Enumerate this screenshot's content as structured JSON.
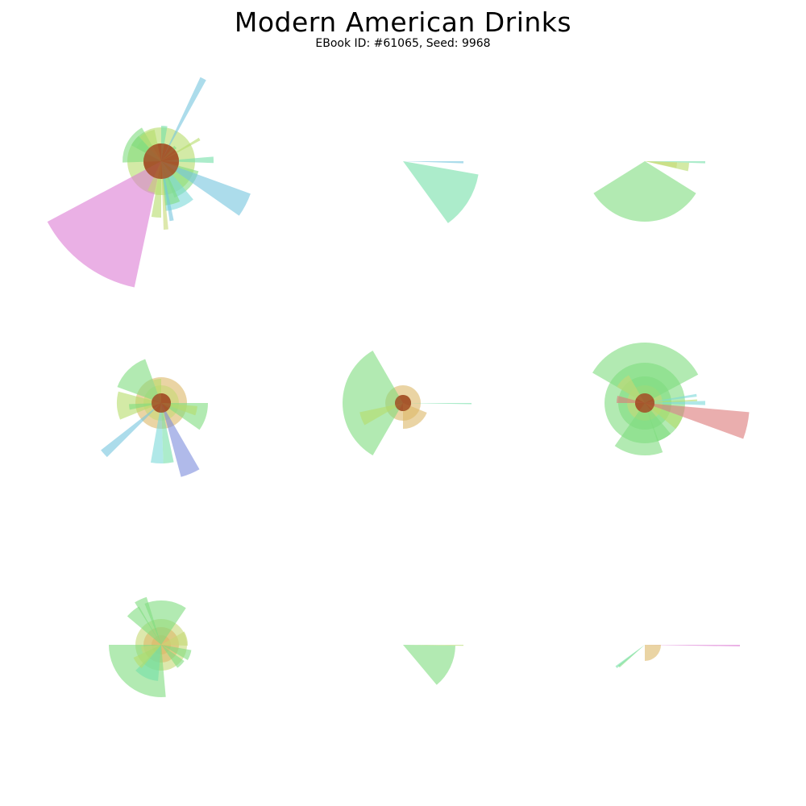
{
  "title": "Modern American Drinks",
  "subtitle": "EBook ID: #61065, Seed: 9968",
  "colors": {
    "green": "#7fdc7f",
    "mint": "#74e0a8",
    "sky": "#74c4de",
    "lime": "#b6dc6a",
    "olive": "#c6d874",
    "cyan": "#7cd8d8",
    "tan": "#dcb868",
    "brown": "#a4552a",
    "pink": "#dc7cd4",
    "red": "#dc7878",
    "periwinkle": "#7c8cdc"
  },
  "chart_data": {
    "type": "polar-area grid",
    "layout": "3x3 grid of radial bar glyphs",
    "glyphs": [
      {
        "name": "glyph-1",
        "core": [
          {
            "r": 22,
            "color": "brown"
          },
          {
            "r": 42,
            "color": "lime"
          }
        ],
        "bars": [
          {
            "start": 192,
            "end": 242,
            "r": 160,
            "color": "pink"
          },
          {
            "start": 298,
            "end": 318,
            "r": 35,
            "color": "lime"
          },
          {
            "start": 298,
            "end": 318,
            "r": 42,
            "color": "green"
          },
          {
            "start": 268,
            "end": 330,
            "r": 48,
            "color": "green"
          },
          {
            "start": 318,
            "end": 348,
            "r": 40,
            "color": "lime"
          },
          {
            "start": 25,
            "end": 29,
            "r": 115,
            "color": "sky"
          },
          {
            "start": 40,
            "end": 50,
            "r": 25,
            "color": "green"
          },
          {
            "start": 58,
            "end": 62,
            "r": 55,
            "color": "lime"
          },
          {
            "start": 0,
            "end": 10,
            "r": 44,
            "color": "mint"
          },
          {
            "start": 85,
            "end": 92,
            "r": 65,
            "color": "mint"
          },
          {
            "start": 105,
            "end": 160,
            "r": 48,
            "color": "green"
          },
          {
            "start": 110,
            "end": 125,
            "r": 118,
            "color": "sky"
          },
          {
            "start": 140,
            "end": 175,
            "r": 62,
            "color": "cyan"
          },
          {
            "start": 155,
            "end": 175,
            "r": 55,
            "color": "green"
          },
          {
            "start": 168,
            "end": 172,
            "r": 75,
            "color": "sky"
          },
          {
            "start": 174,
            "end": 178,
            "r": 85,
            "color": "olive"
          },
          {
            "start": 180,
            "end": 190,
            "r": 70,
            "color": "lime"
          },
          {
            "start": 190,
            "end": 205,
            "r": 40,
            "color": "olive"
          }
        ]
      },
      {
        "name": "glyph-2",
        "core": [],
        "bars": [
          {
            "start": 90,
            "end": 92,
            "r": 75,
            "color": "sky"
          },
          {
            "start": 100,
            "end": 144,
            "r": 95,
            "color": "mint"
          }
        ]
      },
      {
        "name": "glyph-3",
        "core": [],
        "bars": [
          {
            "start": 90,
            "end": 92,
            "r": 75,
            "color": "mint"
          },
          {
            "start": 92,
            "end": 103,
            "r": 55,
            "color": "lime"
          },
          {
            "start": 92,
            "end": 102,
            "r": 40,
            "color": "olive"
          },
          {
            "start": 122,
            "end": 238,
            "r": 75,
            "color": "green"
          }
        ]
      },
      {
        "name": "glyph-4",
        "core": [
          {
            "r": 12,
            "color": "brown"
          },
          {
            "r": 22,
            "color": "olive"
          },
          {
            "r": 32,
            "color": "tan"
          }
        ],
        "bars": [
          {
            "start": 290,
            "end": 340,
            "r": 58,
            "color": "green"
          },
          {
            "start": 340,
            "end": 360,
            "r": 30,
            "color": "lime"
          },
          {
            "start": 90,
            "end": 125,
            "r": 58,
            "color": "green"
          },
          {
            "start": 95,
            "end": 110,
            "r": 45,
            "color": "lime"
          },
          {
            "start": 150,
            "end": 165,
            "r": 95,
            "color": "periwinkle"
          },
          {
            "start": 168,
            "end": 178,
            "r": 75,
            "color": "mint"
          },
          {
            "start": 178,
            "end": 190,
            "r": 75,
            "color": "cyan"
          },
          {
            "start": 225,
            "end": 232,
            "r": 95,
            "color": "sky"
          },
          {
            "start": 248,
            "end": 285,
            "r": 55,
            "color": "lime"
          },
          {
            "start": 258,
            "end": 268,
            "r": 40,
            "color": "green"
          }
        ]
      },
      {
        "name": "glyph-5",
        "core": [
          {
            "r": 10,
            "color": "brown"
          },
          {
            "r": 22,
            "color": "tan"
          }
        ],
        "bars": [
          {
            "start": 90,
            "end": 91,
            "r": 85,
            "color": "mint"
          },
          {
            "start": 112,
            "end": 180,
            "r": 32,
            "color": "tan"
          },
          {
            "start": 210,
            "end": 330,
            "r": 75,
            "color": "green"
          },
          {
            "start": 240,
            "end": 258,
            "r": 55,
            "color": "lime"
          }
        ]
      },
      {
        "name": "glyph-6",
        "core": [
          {
            "r": 12,
            "color": "brown"
          },
          {
            "r": 22,
            "color": "olive"
          },
          {
            "r": 33,
            "color": "green"
          },
          {
            "r": 50,
            "color": "green"
          }
        ],
        "bars": [
          {
            "start": 300,
            "end": 62,
            "r": 75,
            "color": "green"
          },
          {
            "start": 300,
            "end": 330,
            "r": 40,
            "color": "olive"
          },
          {
            "start": 80,
            "end": 83,
            "r": 65,
            "color": "cyan"
          },
          {
            "start": 86,
            "end": 88,
            "r": 65,
            "color": "lime"
          },
          {
            "start": 88,
            "end": 92,
            "r": 75,
            "color": "cyan"
          },
          {
            "start": 95,
            "end": 110,
            "r": 130,
            "color": "red"
          },
          {
            "start": 110,
            "end": 130,
            "r": 50,
            "color": "lime"
          },
          {
            "start": 140,
            "end": 162,
            "r": 50,
            "color": "green"
          },
          {
            "start": 160,
            "end": 215,
            "r": 65,
            "color": "green"
          },
          {
            "start": 270,
            "end": 285,
            "r": 35,
            "color": "red"
          }
        ]
      },
      {
        "name": "glyph-7",
        "core": [
          {
            "r": 12,
            "color": "tan"
          },
          {
            "r": 22,
            "color": "tan"
          },
          {
            "r": 32,
            "color": "olive"
          }
        ],
        "bars": [
          {
            "start": 310,
            "end": 330,
            "r": 55,
            "color": "green"
          },
          {
            "start": 328,
            "end": 343,
            "r": 62,
            "color": "green"
          },
          {
            "start": 338,
            "end": 34,
            "r": 55,
            "color": "green"
          },
          {
            "start": 60,
            "end": 92,
            "r": 33,
            "color": "olive"
          },
          {
            "start": 100,
            "end": 120,
            "r": 38,
            "color": "green"
          },
          {
            "start": 125,
            "end": 145,
            "r": 35,
            "color": "green"
          },
          {
            "start": 175,
            "end": 270,
            "r": 65,
            "color": "green"
          },
          {
            "start": 185,
            "end": 225,
            "r": 45,
            "color": "mint"
          },
          {
            "start": 220,
            "end": 245,
            "r": 38,
            "color": "lime"
          },
          {
            "start": 245,
            "end": 265,
            "r": 25,
            "color": "olive"
          }
        ]
      },
      {
        "name": "glyph-8",
        "core": [],
        "bars": [
          {
            "start": 90,
            "end": 91,
            "r": 75,
            "color": "lime"
          },
          {
            "start": 91,
            "end": 140,
            "r": 65,
            "color": "green"
          }
        ]
      },
      {
        "name": "glyph-9",
        "core": [],
        "bars": [
          {
            "start": 90,
            "end": 91,
            "r": 118,
            "color": "pink"
          },
          {
            "start": 90,
            "end": 180,
            "r": 20,
            "color": "tan"
          },
          {
            "start": 228,
            "end": 232,
            "r": 42,
            "color": "green"
          },
          {
            "start": 230,
            "end": 234,
            "r": 45,
            "color": "mint"
          }
        ]
      }
    ]
  }
}
